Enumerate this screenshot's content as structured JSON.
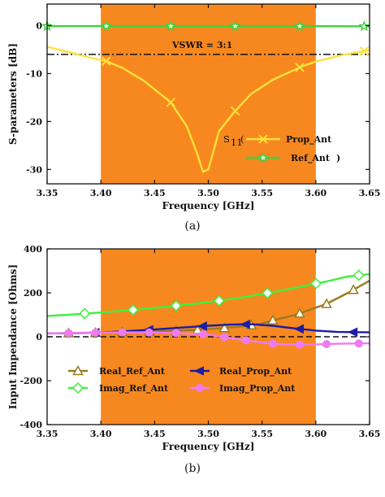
{
  "chart_data": [
    {
      "type": "line",
      "caption": "(a)",
      "xlabel": "Frequency [GHz]",
      "ylabel": "S-parameters [dB]",
      "xlim": [
        3.35,
        3.65
      ],
      "ylim": [
        -33,
        4.5
      ],
      "xticks": [
        "3.35",
        "3.40",
        "3.45",
        "3.50",
        "3.55",
        "3.60",
        "3.65"
      ],
      "xtick_values": [
        3.35,
        3.4,
        3.45,
        3.5,
        3.55,
        3.6,
        3.65
      ],
      "yticks": [
        "0",
        "-10",
        "-20",
        "-30"
      ],
      "ytick_values": [
        0,
        -10,
        -20,
        -30
      ],
      "band": [
        3.4,
        3.6
      ],
      "band_color": "#f7881f",
      "reference_line": {
        "y": -6,
        "label": "VSWR = 3:1"
      },
      "legend_prefix": "S",
      "legend_sub": "11",
      "legend_suffix": ")",
      "series": [
        {
          "name": "Prop_Ant",
          "color": "#ffe13a",
          "marker": "x",
          "x": [
            3.35,
            3.37,
            3.39,
            3.405,
            3.42,
            3.44,
            3.465,
            3.48,
            3.49,
            3.495,
            3.5,
            3.51,
            3.525,
            3.54,
            3.56,
            3.585,
            3.6,
            3.625,
            3.65
          ],
          "y": [
            -4.4,
            -5.5,
            -6.7,
            -7.4,
            -8.8,
            -11.5,
            -16.0,
            -21.0,
            -27.0,
            -30.5,
            -30.0,
            -22.0,
            -17.8,
            -14.2,
            -11.3,
            -8.7,
            -7.5,
            -6.1,
            -5.1
          ],
          "marker_x": [
            3.405,
            3.465,
            3.525,
            3.585,
            3.645
          ]
        },
        {
          "name": "Ref_Ant",
          "color": "#3ed13e",
          "marker": "star",
          "x": [
            3.35,
            3.4,
            3.45,
            3.5,
            3.55,
            3.6,
            3.65
          ],
          "y": [
            -0.1,
            -0.1,
            -0.1,
            -0.1,
            -0.1,
            -0.1,
            -0.15
          ],
          "marker_x": [
            3.35,
            3.405,
            3.465,
            3.525,
            3.585,
            3.645
          ]
        }
      ]
    },
    {
      "type": "line",
      "caption": "(b)",
      "xlabel": "Frequency [GHz]",
      "ylabel": "Input Impendance [Ohms]",
      "xlim": [
        3.35,
        3.65
      ],
      "ylim": [
        -400,
        400
      ],
      "xticks": [
        "3.35",
        "3.40",
        "3.45",
        "3.50",
        "3.55",
        "3.60",
        "3.65"
      ],
      "xtick_values": [
        3.35,
        3.4,
        3.45,
        3.5,
        3.55,
        3.6,
        3.65
      ],
      "yticks": [
        "400",
        "200",
        "0",
        "-200",
        "-400"
      ],
      "ytick_values": [
        400,
        200,
        0,
        -200,
        -400
      ],
      "band": [
        3.4,
        3.6
      ],
      "band_color": "#f7881f",
      "reference_line": {
        "y": 0,
        "label": ""
      },
      "series": [
        {
          "name": "Real_Ref_Ant",
          "color": "#9a7a20",
          "marker": "triangle",
          "x": [
            3.35,
            3.37,
            3.39,
            3.41,
            3.43,
            3.45,
            3.47,
            3.49,
            3.51,
            3.53,
            3.55,
            3.56,
            3.58,
            3.59,
            3.61,
            3.63,
            3.65
          ],
          "y": [
            15,
            17,
            18,
            20,
            22,
            25,
            28,
            32,
            38,
            46,
            60,
            75,
            98,
            115,
            150,
            200,
            255
          ],
          "marker_x": [
            3.37,
            3.395,
            3.42,
            3.445,
            3.47,
            3.49,
            3.515,
            3.54,
            3.56,
            3.585,
            3.61,
            3.635
          ]
        },
        {
          "name": "Imag_Ref_Ant",
          "color": "#3ef03e",
          "marker": "diamond",
          "x": [
            3.35,
            3.37,
            3.39,
            3.41,
            3.43,
            3.45,
            3.47,
            3.49,
            3.51,
            3.53,
            3.55,
            3.57,
            3.59,
            3.61,
            3.63,
            3.65
          ],
          "y": [
            95,
            100,
            107,
            114,
            122,
            131,
            141,
            152,
            164,
            178,
            194,
            212,
            232,
            252,
            275,
            285
          ],
          "marker_x": [
            3.385,
            3.43,
            3.47,
            3.51,
            3.555,
            3.6,
            3.64
          ]
        },
        {
          "name": "Real_Prop_Ant",
          "color": "#1c1ca6",
          "marker": "triangle-left",
          "x": [
            3.35,
            3.38,
            3.41,
            3.44,
            3.47,
            3.5,
            3.52,
            3.54,
            3.56,
            3.58,
            3.6,
            3.62,
            3.65
          ],
          "y": [
            15,
            17,
            22,
            30,
            40,
            50,
            55,
            57,
            50,
            38,
            28,
            22,
            20
          ],
          "marker_x": [
            3.395,
            3.445,
            3.495,
            3.535,
            3.585,
            3.635
          ]
        },
        {
          "name": "Imag_Prop_Ant",
          "color": "#f07af0",
          "marker": "circle",
          "x": [
            3.35,
            3.38,
            3.41,
            3.44,
            3.47,
            3.5,
            3.52,
            3.54,
            3.56,
            3.58,
            3.6,
            3.62,
            3.65
          ],
          "y": [
            15,
            18,
            20,
            20,
            17,
            10,
            -5,
            -20,
            -32,
            -36,
            -35,
            -32,
            -30
          ],
          "marker_x": [
            3.37,
            3.395,
            3.42,
            3.445,
            3.47,
            3.495,
            3.515,
            3.535,
            3.56,
            3.585,
            3.61,
            3.64
          ]
        }
      ]
    }
  ]
}
